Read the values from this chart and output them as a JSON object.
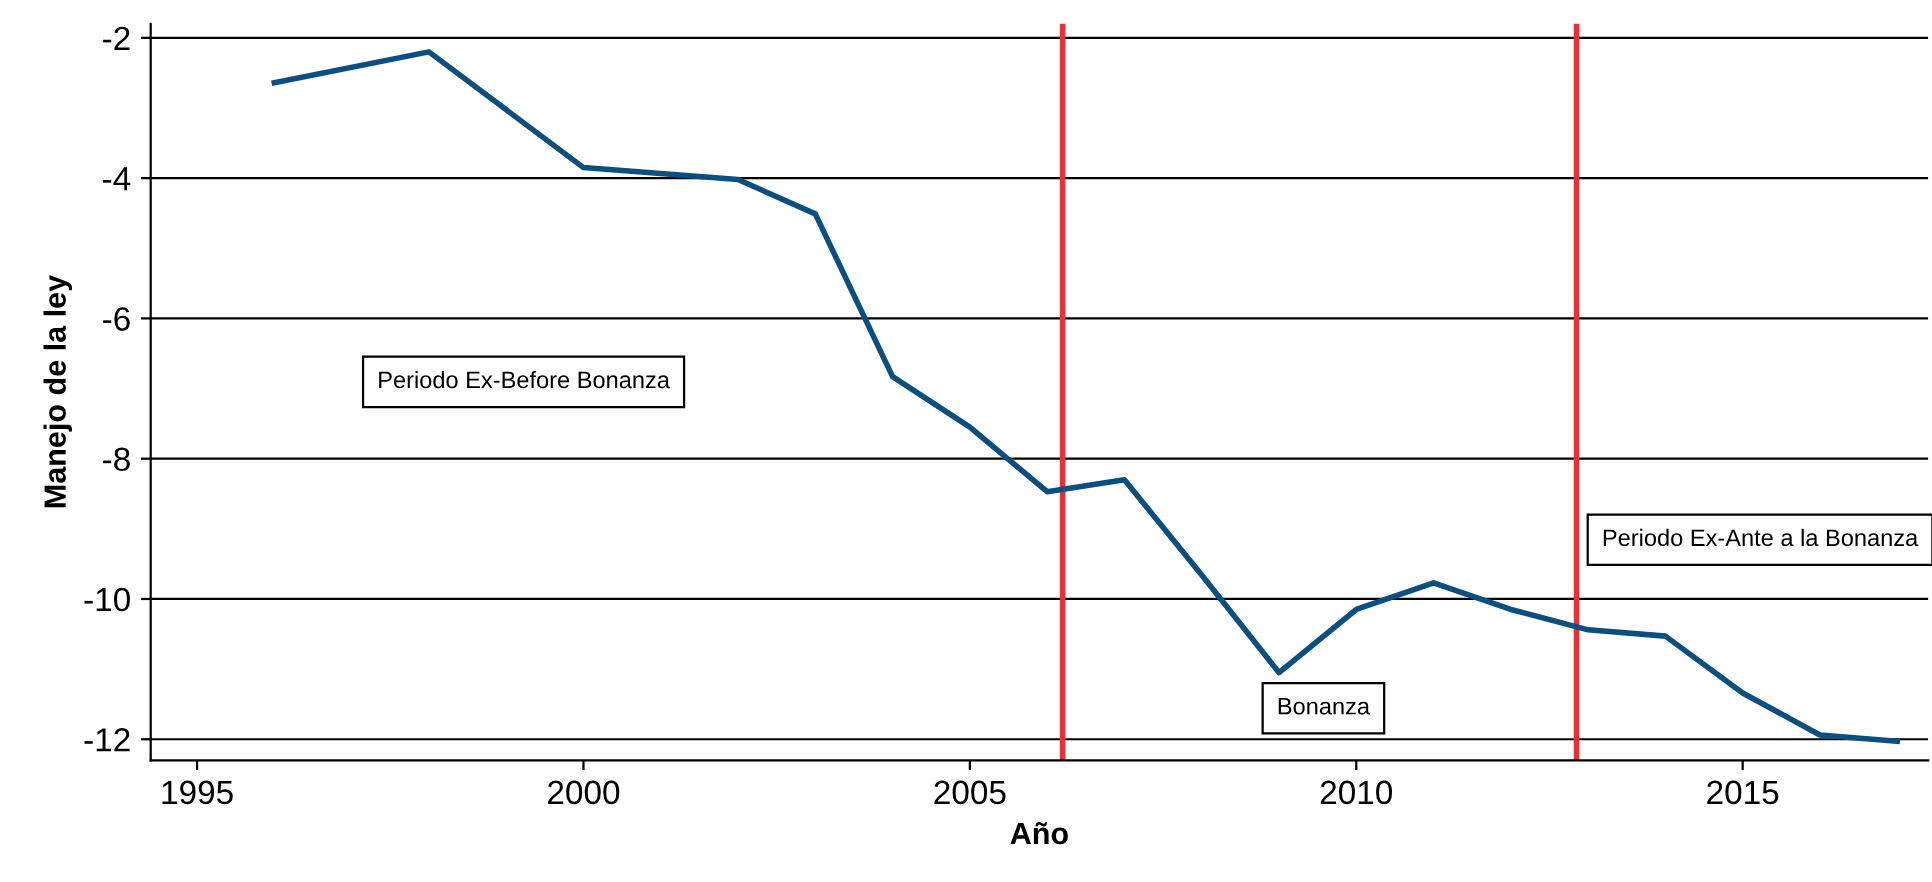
{
  "chart_data": {
    "type": "line",
    "xlabel": "Año",
    "ylabel": "Manejo de la ley",
    "x": [
      1996,
      1998,
      2000,
      2002,
      2003,
      2004,
      2005,
      2006,
      2007,
      2008,
      2009,
      2010,
      2011,
      2012,
      2013,
      2014,
      2015,
      2016,
      2017
    ],
    "series": [
      {
        "color": "#0b4f80",
        "values": [
          -2.64,
          -2.2,
          -3.85,
          -4.02,
          -4.51,
          -6.83,
          -7.55,
          -8.47,
          -8.3,
          -9.66,
          -11.05,
          -10.15,
          -9.77,
          -10.15,
          -10.44,
          -10.53,
          -11.34,
          -11.94,
          -12.03
        ]
      }
    ],
    "xlim": [
      1994.4,
      2017.4
    ],
    "xticks": [
      1995,
      2000,
      2005,
      2010,
      2015
    ],
    "ylim": [
      -12.3,
      -1.8
    ],
    "yticks": [
      -12,
      -10,
      -8,
      -6,
      -4,
      -2
    ],
    "grid": "y",
    "marker": "none",
    "line_style": "solid",
    "ref_lines": [
      {
        "axis": "x",
        "value": 2006.2,
        "color": "#e8303a"
      },
      {
        "axis": "x",
        "value": 2012.85,
        "color": "#e8303a"
      }
    ],
    "annotations": [
      "Periodo Ex-Before Bonanza",
      "Bonanza",
      "Periodo Ex-Ante a la Bonanza"
    ]
  }
}
